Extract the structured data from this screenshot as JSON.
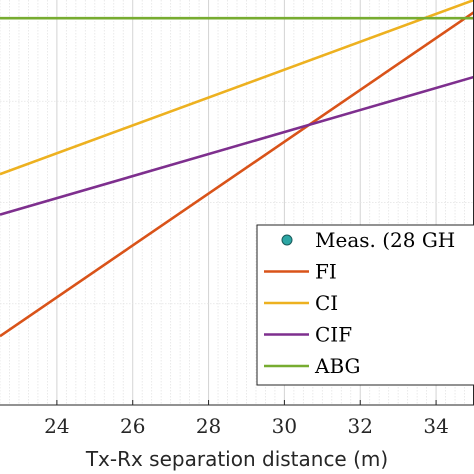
{
  "chart_data": {
    "type": "line",
    "xlabel": "Tx-Rx separation distance (m)",
    "ylabel": "",
    "xlim": [
      22.5,
      35.0
    ],
    "ylim": [
      0,
      1
    ],
    "x_ticks": [
      "24",
      "26",
      "28",
      "30",
      "32",
      "34"
    ],
    "x_tick_values": [
      24,
      26,
      28,
      30,
      32,
      34
    ],
    "grid": "on, dense vertical minor grid",
    "colors": {
      "meas": "#2ca6a4",
      "FI": "#d95319",
      "CI": "#edb120",
      "CIF": "#7e2f8e",
      "ABG": "#77ac30"
    },
    "series": [
      {
        "name": "Meas. (28 GH",
        "marker": "circle",
        "x": [],
        "y": []
      },
      {
        "name": "FI",
        "x": [
          22.5,
          35.0
        ],
        "y": [
          0.17,
          0.97
        ]
      },
      {
        "name": "CI",
        "x": [
          22.5,
          35.0
        ],
        "y": [
          0.57,
          1.0
        ]
      },
      {
        "name": "CIF",
        "x": [
          22.5,
          35.0
        ],
        "y": [
          0.47,
          0.81
        ]
      },
      {
        "name": "ABG",
        "x": [
          22.5,
          35.0
        ],
        "y": [
          0.955,
          0.955
        ]
      }
    ],
    "legend": {
      "placement": "lower-right",
      "entries": [
        "Meas. (28 GH",
        "FI",
        "CI",
        "CIF",
        "ABG"
      ]
    }
  }
}
